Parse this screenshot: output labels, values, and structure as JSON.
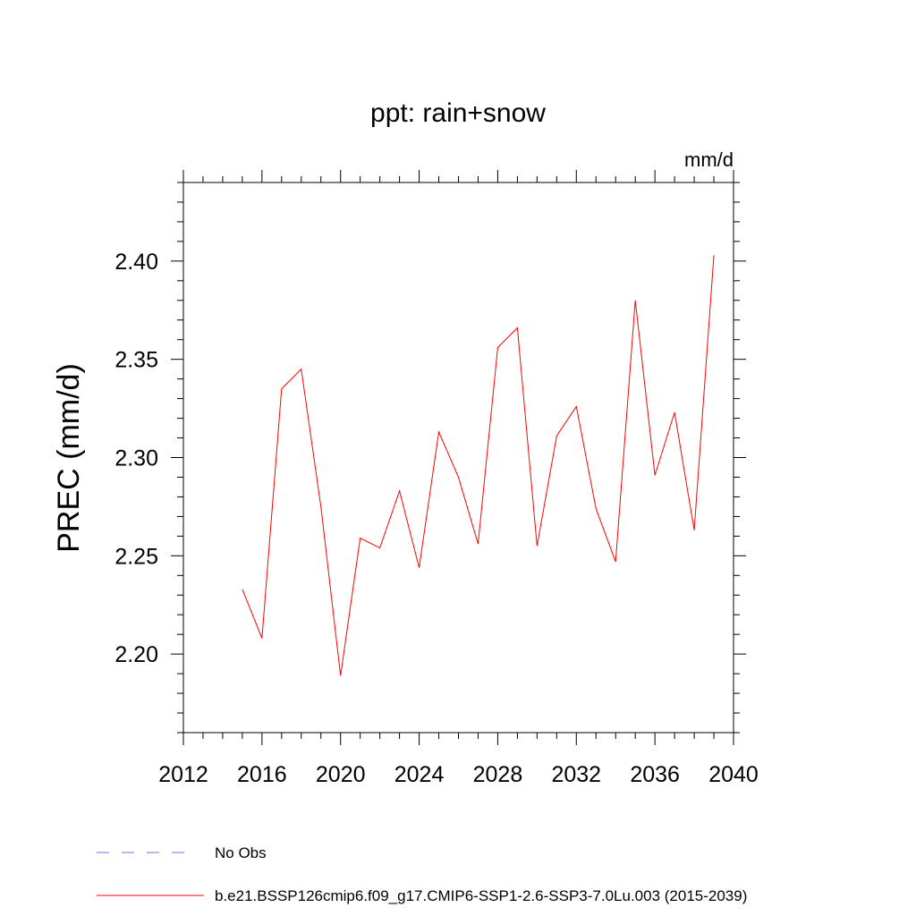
{
  "chart_data": {
    "type": "line",
    "title": "ppt: rain+snow",
    "units_label": "mm/d",
    "ylabel": "PREC  (mm/d)",
    "xlabel": "",
    "xlim": [
      2012,
      2040
    ],
    "ylim": [
      2.16,
      2.44
    ],
    "x_ticks": [
      2012,
      2016,
      2020,
      2024,
      2028,
      2032,
      2036,
      2040
    ],
    "x_tick_labels": [
      "2012",
      "2016",
      "2020",
      "2024",
      "2028",
      "2032",
      "2036",
      "2040"
    ],
    "y_ticks": [
      2.2,
      2.25,
      2.3,
      2.35,
      2.4
    ],
    "y_tick_labels": [
      "2.20",
      "2.25",
      "2.30",
      "2.35",
      "2.40"
    ],
    "grid": false,
    "series": [
      {
        "name": "b.e21.BSSP126cmip6.f09_g17.CMIP6-SSP1-2.6-SSP3-7.0Lu.003 (2015-2039)",
        "color": "#ff0000",
        "style": "solid",
        "x": [
          2015,
          2016,
          2017,
          2018,
          2019,
          2020,
          2021,
          2022,
          2023,
          2024,
          2025,
          2026,
          2027,
          2028,
          2029,
          2030,
          2031,
          2032,
          2033,
          2034,
          2035,
          2036,
          2037,
          2038,
          2039
        ],
        "values": [
          2.233,
          2.208,
          2.335,
          2.345,
          2.275,
          2.189,
          2.259,
          2.254,
          2.283,
          2.244,
          2.313,
          2.29,
          2.256,
          2.356,
          2.366,
          2.255,
          2.311,
          2.326,
          2.274,
          2.247,
          2.38,
          2.291,
          2.323,
          2.263,
          2.403
        ]
      }
    ],
    "legend": [
      {
        "label": "No Obs",
        "color": "#7b68ee",
        "style": "dashed"
      },
      {
        "label": "b.e21.BSSP126cmip6.f09_g17.CMIP6-SSP1-2.6-SSP3-7.0Lu.003 (2015-2039)",
        "color": "#ff0000",
        "style": "solid"
      }
    ],
    "legend_position": "bottom-left"
  }
}
